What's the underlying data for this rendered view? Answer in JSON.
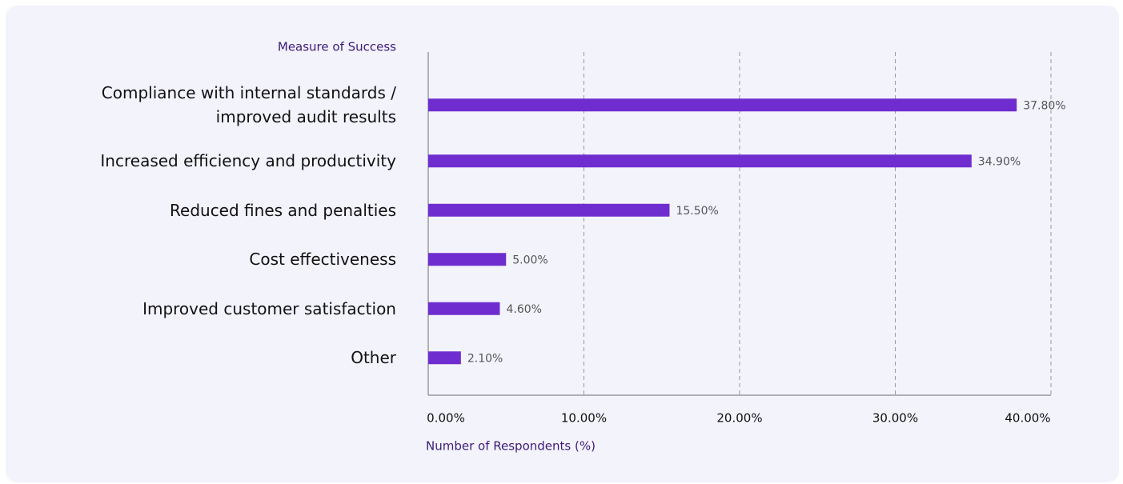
{
  "chart_data": {
    "type": "bar",
    "orientation": "horizontal",
    "y_axis_title": "Measure of Success",
    "x_axis_title": "Number of Respondents (%)",
    "categories": [
      "Compliance with internal standards / improved audit results",
      "Increased efficiency and productivity",
      "Reduced fines and penalties",
      "Cost effectiveness",
      "Improved customer satisfaction",
      "Other"
    ],
    "values": [
      37.8,
      34.9,
      15.5,
      5.0,
      4.6,
      2.1
    ],
    "value_labels": [
      "37.80%",
      "34.90%",
      "15.50%",
      "5.00%",
      "4.60%",
      "2.10%"
    ],
    "color": "#6f2dcf",
    "xlim": [
      0,
      40
    ],
    "xticks": [
      {
        "value": 0,
        "label": "0.00%"
      },
      {
        "value": 10,
        "label": "10.00%"
      },
      {
        "value": 20,
        "label": "20.00%"
      },
      {
        "value": 30,
        "label": "30.00%"
      },
      {
        "value": 40,
        "label": "40.00%"
      }
    ],
    "grid": true
  }
}
